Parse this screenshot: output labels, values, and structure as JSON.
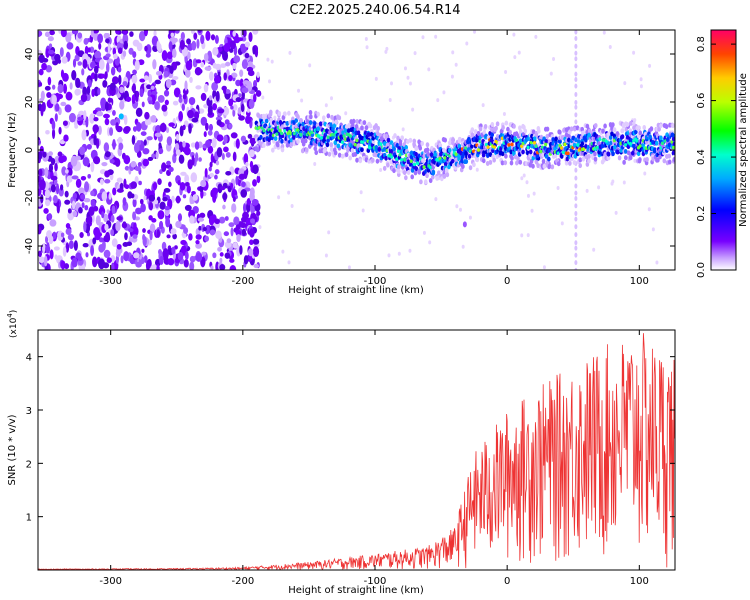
{
  "title": "C2E2.2025.240.06.54.R14",
  "chart_data": [
    {
      "type": "heatmap",
      "xlabel": "Height of straight line (km)",
      "ylabel": "Frequency (Hz)",
      "xlim": [
        -355,
        127
      ],
      "ylim": [
        -50,
        50
      ],
      "xticks": [
        -300,
        -200,
        -100,
        0,
        100
      ],
      "yticks": [
        -40,
        -20,
        0,
        20,
        40
      ],
      "noise_region_x": [
        -355,
        -188
      ],
      "noise_column_x": 52,
      "signal_band": [
        {
          "x": -190,
          "y": 8
        },
        {
          "x": -160,
          "y": 8
        },
        {
          "x": -130,
          "y": 6
        },
        {
          "x": -100,
          "y": 2
        },
        {
          "x": -80,
          "y": -3
        },
        {
          "x": -60,
          "y": -6
        },
        {
          "x": -40,
          "y": -2
        },
        {
          "x": -20,
          "y": 2
        },
        {
          "x": 0,
          "y": 3
        },
        {
          "x": 20,
          "y": 1
        },
        {
          "x": 40,
          "y": 0
        },
        {
          "x": 60,
          "y": 2
        },
        {
          "x": 80,
          "y": 3
        },
        {
          "x": 100,
          "y": 3
        },
        {
          "x": 127,
          "y": 2
        }
      ],
      "colorbar": {
        "label": "Normalized spectral amplitude",
        "range": [
          0.0,
          0.85
        ],
        "ticks": [
          "0.0",
          "0.2",
          "0.4",
          "0.6",
          "0.8"
        ],
        "tick_values": [
          0.0,
          0.2,
          0.4,
          0.6,
          0.8
        ]
      }
    },
    {
      "type": "line",
      "xlabel": "Height of straight line (km)",
      "ylabel": "SNR (10 * v/v)",
      "scale_label": "(x10",
      "scale_exp": "4",
      "scale_close": ")",
      "xlim": [
        -355,
        127
      ],
      "ylim": [
        0,
        4.5
      ],
      "xticks": [
        -300,
        -200,
        -100,
        0,
        100
      ],
      "yticks": [
        1,
        2,
        3,
        4
      ],
      "series": [
        {
          "color": "#ee3333",
          "envelope": [
            {
              "x": -355,
              "y": 0.02
            },
            {
              "x": -250,
              "y": 0.03
            },
            {
              "x": -200,
              "y": 0.05
            },
            {
              "x": -150,
              "y": 0.15
            },
            {
              "x": -100,
              "y": 0.3
            },
            {
              "x": -60,
              "y": 0.45
            },
            {
              "x": -40,
              "y": 0.8
            },
            {
              "x": -25,
              "y": 2.2
            },
            {
              "x": -10,
              "y": 2.7
            },
            {
              "x": 0,
              "y": 3.0
            },
            {
              "x": 20,
              "y": 3.4
            },
            {
              "x": 40,
              "y": 3.7
            },
            {
              "x": 60,
              "y": 4.0
            },
            {
              "x": 80,
              "y": 4.3
            },
            {
              "x": 100,
              "y": 4.5
            },
            {
              "x": 127,
              "y": 4.0
            }
          ]
        }
      ]
    }
  ]
}
